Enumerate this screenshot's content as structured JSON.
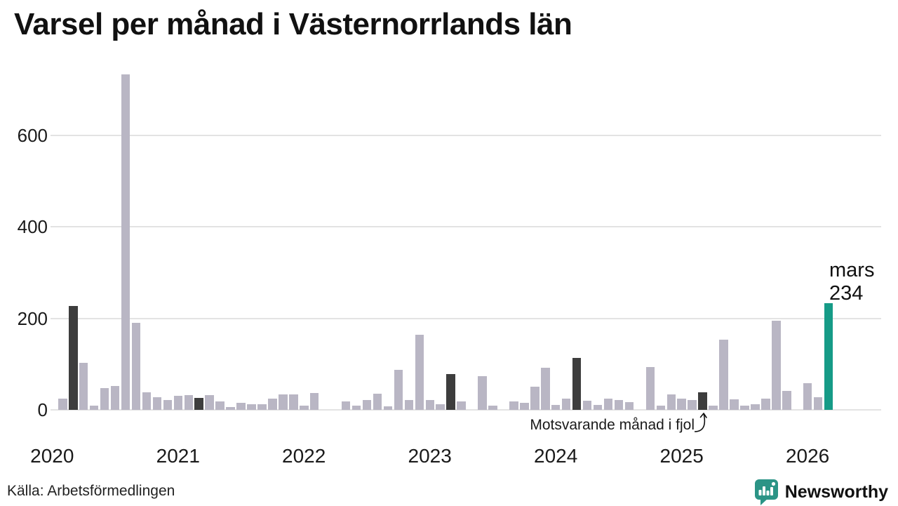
{
  "title": "Varsel per månad i Västernorrlands län",
  "source": "Källa: Arbetsförmedlingen",
  "annotation": {
    "text": "Motsvarande månad i fjol"
  },
  "current_label": {
    "month": "mars",
    "value": "234"
  },
  "logo": {
    "text": "Newsworthy"
  },
  "colors": {
    "bar_normal": "#b9b6c4",
    "bar_compare": "#3d3d3d",
    "bar_current": "#169b87",
    "gridline": "#e3e3e3",
    "logo_teal": "#2b9486",
    "text": "#111111"
  },
  "chart_data": {
    "type": "bar",
    "title": "Varsel per månad i Västernorrlands län",
    "xlabel": "",
    "ylabel": "",
    "ylim": [
      0,
      750
    ],
    "yticks": [
      0,
      200,
      400,
      600
    ],
    "x_year_labels": [
      "2020",
      "2021",
      "2022",
      "2023",
      "2024",
      "2025",
      "2026"
    ],
    "legend": "none",
    "grid": "horizontal",
    "months": [
      {
        "month": "2020-01",
        "value": 0,
        "kind": "normal"
      },
      {
        "month": "2020-02",
        "value": 25,
        "kind": "normal"
      },
      {
        "month": "2020-03",
        "value": 227,
        "kind": "compare"
      },
      {
        "month": "2020-04",
        "value": 103,
        "kind": "normal"
      },
      {
        "month": "2020-05",
        "value": 10,
        "kind": "normal"
      },
      {
        "month": "2020-06",
        "value": 48,
        "kind": "normal"
      },
      {
        "month": "2020-07",
        "value": 53,
        "kind": "normal"
      },
      {
        "month": "2020-08",
        "value": 733,
        "kind": "normal"
      },
      {
        "month": "2020-09",
        "value": 190,
        "kind": "normal"
      },
      {
        "month": "2020-10",
        "value": 39,
        "kind": "normal"
      },
      {
        "month": "2020-11",
        "value": 28,
        "kind": "normal"
      },
      {
        "month": "2020-12",
        "value": 22,
        "kind": "normal"
      },
      {
        "month": "2021-01",
        "value": 31,
        "kind": "normal"
      },
      {
        "month": "2021-02",
        "value": 33,
        "kind": "normal"
      },
      {
        "month": "2021-03",
        "value": 26,
        "kind": "compare"
      },
      {
        "month": "2021-04",
        "value": 33,
        "kind": "normal"
      },
      {
        "month": "2021-05",
        "value": 19,
        "kind": "normal"
      },
      {
        "month": "2021-06",
        "value": 6,
        "kind": "normal"
      },
      {
        "month": "2021-07",
        "value": 15,
        "kind": "normal"
      },
      {
        "month": "2021-08",
        "value": 12,
        "kind": "normal"
      },
      {
        "month": "2021-09",
        "value": 12,
        "kind": "normal"
      },
      {
        "month": "2021-10",
        "value": 25,
        "kind": "normal"
      },
      {
        "month": "2021-11",
        "value": 34,
        "kind": "normal"
      },
      {
        "month": "2021-12",
        "value": 34,
        "kind": "normal"
      },
      {
        "month": "2022-01",
        "value": 9,
        "kind": "normal"
      },
      {
        "month": "2022-02",
        "value": 37,
        "kind": "normal"
      },
      {
        "month": "2022-03",
        "value": 0,
        "kind": "compare"
      },
      {
        "month": "2022-04",
        "value": 0,
        "kind": "normal"
      },
      {
        "month": "2022-05",
        "value": 19,
        "kind": "normal"
      },
      {
        "month": "2022-06",
        "value": 10,
        "kind": "normal"
      },
      {
        "month": "2022-07",
        "value": 21,
        "kind": "normal"
      },
      {
        "month": "2022-08",
        "value": 36,
        "kind": "normal"
      },
      {
        "month": "2022-09",
        "value": 7,
        "kind": "normal"
      },
      {
        "month": "2022-10",
        "value": 87,
        "kind": "normal"
      },
      {
        "month": "2022-11",
        "value": 22,
        "kind": "normal"
      },
      {
        "month": "2022-12",
        "value": 164,
        "kind": "normal"
      },
      {
        "month": "2023-01",
        "value": 22,
        "kind": "normal"
      },
      {
        "month": "2023-02",
        "value": 13,
        "kind": "normal"
      },
      {
        "month": "2023-03",
        "value": 78,
        "kind": "compare"
      },
      {
        "month": "2023-04",
        "value": 19,
        "kind": "normal"
      },
      {
        "month": "2023-05",
        "value": 0,
        "kind": "normal"
      },
      {
        "month": "2023-06",
        "value": 74,
        "kind": "normal"
      },
      {
        "month": "2023-07",
        "value": 10,
        "kind": "normal"
      },
      {
        "month": "2023-08",
        "value": 0,
        "kind": "normal"
      },
      {
        "month": "2023-09",
        "value": 18,
        "kind": "normal"
      },
      {
        "month": "2023-10",
        "value": 15,
        "kind": "normal"
      },
      {
        "month": "2023-11",
        "value": 50,
        "kind": "normal"
      },
      {
        "month": "2023-12",
        "value": 92,
        "kind": "normal"
      },
      {
        "month": "2024-01",
        "value": 11,
        "kind": "normal"
      },
      {
        "month": "2024-02",
        "value": 25,
        "kind": "normal"
      },
      {
        "month": "2024-03",
        "value": 114,
        "kind": "compare"
      },
      {
        "month": "2024-04",
        "value": 20,
        "kind": "normal"
      },
      {
        "month": "2024-05",
        "value": 11,
        "kind": "normal"
      },
      {
        "month": "2024-06",
        "value": 25,
        "kind": "normal"
      },
      {
        "month": "2024-07",
        "value": 22,
        "kind": "normal"
      },
      {
        "month": "2024-08",
        "value": 17,
        "kind": "normal"
      },
      {
        "month": "2024-09",
        "value": 0,
        "kind": "normal"
      },
      {
        "month": "2024-10",
        "value": 93,
        "kind": "normal"
      },
      {
        "month": "2024-11",
        "value": 9,
        "kind": "normal"
      },
      {
        "month": "2024-12",
        "value": 34,
        "kind": "normal"
      },
      {
        "month": "2025-01",
        "value": 25,
        "kind": "normal"
      },
      {
        "month": "2025-02",
        "value": 22,
        "kind": "normal"
      },
      {
        "month": "2025-03",
        "value": 38,
        "kind": "compare"
      },
      {
        "month": "2025-04",
        "value": 10,
        "kind": "normal"
      },
      {
        "month": "2025-05",
        "value": 154,
        "kind": "normal"
      },
      {
        "month": "2025-06",
        "value": 23,
        "kind": "normal"
      },
      {
        "month": "2025-07",
        "value": 9,
        "kind": "normal"
      },
      {
        "month": "2025-08",
        "value": 12,
        "kind": "normal"
      },
      {
        "month": "2025-09",
        "value": 25,
        "kind": "normal"
      },
      {
        "month": "2025-10",
        "value": 195,
        "kind": "normal"
      },
      {
        "month": "2025-11",
        "value": 41,
        "kind": "normal"
      },
      {
        "month": "2025-12",
        "value": 0,
        "kind": "normal"
      },
      {
        "month": "2026-01",
        "value": 58,
        "kind": "normal"
      },
      {
        "month": "2026-02",
        "value": 27,
        "kind": "normal"
      },
      {
        "month": "2026-03",
        "value": 234,
        "kind": "current"
      }
    ]
  }
}
